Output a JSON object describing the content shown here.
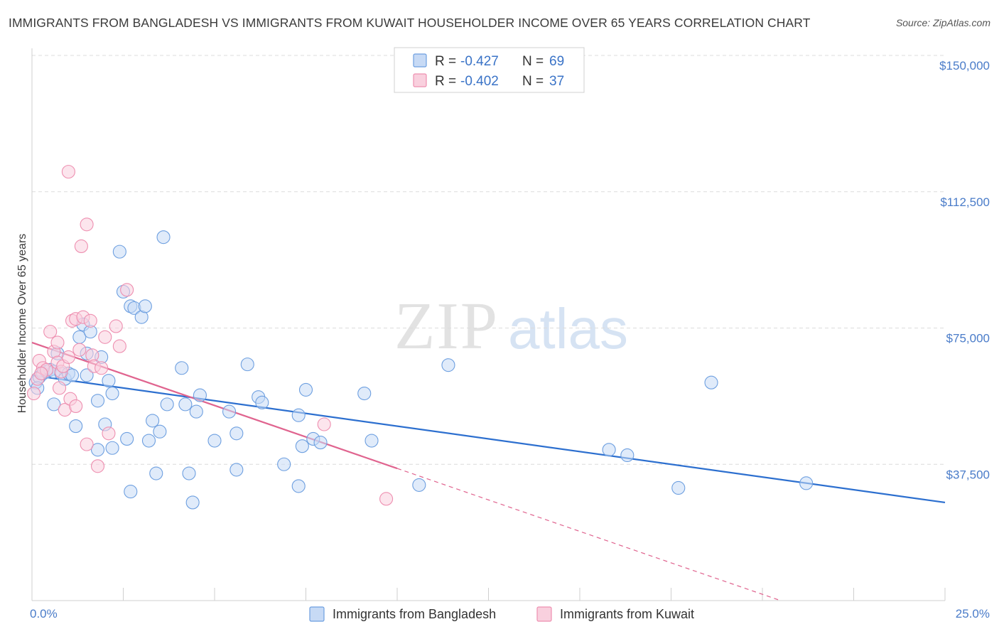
{
  "title": "IMMIGRANTS FROM BANGLADESH VS IMMIGRANTS FROM KUWAIT HOUSEHOLDER INCOME OVER 65 YEARS CORRELATION CHART",
  "source": "Source: ZipAtlas.com",
  "watermark": {
    "zip": "ZIP",
    "atlas": "atlas"
  },
  "colors": {
    "blue": "#6d9fe0",
    "blue_fill": "#c7daf5",
    "blue_line": "#2c6fcf",
    "pink": "#ee8fb0",
    "pink_fill": "#f9d0de",
    "pink_line": "#e0648f",
    "tick_text": "#4a7cc9",
    "grid": "#dcdcdc"
  },
  "legend_top": {
    "items": [
      {
        "r_label": "R = ",
        "r_value": "-0.427",
        "n_label": "N = ",
        "n_value": "69"
      },
      {
        "r_label": "R = ",
        "r_value": "-0.402",
        "n_label": "N = ",
        "n_value": "37"
      }
    ]
  },
  "chart_data": {
    "type": "scatter",
    "ylabel": "Householder Income Over 65 years",
    "xlim": [
      0,
      25
    ],
    "ylim": [
      0,
      150000
    ],
    "x_tick_labels": [
      "0.0%",
      "25.0%"
    ],
    "y_ticks": [
      {
        "value": 37500,
        "label": "$37,500"
      },
      {
        "value": 75000,
        "label": "$75,000"
      },
      {
        "value": 112500,
        "label": "$112,500"
      },
      {
        "value": 150000,
        "label": "$150,000"
      }
    ],
    "grid": "horizontal dashed",
    "legend_placement": "top-center and bottom",
    "series": [
      {
        "name": "Immigrants from Bangladesh",
        "color_key": "blue",
        "trend": {
          "x0": 0,
          "y0": 62000,
          "x1": 25,
          "y1": 27000,
          "dashed_after": null
        },
        "points": [
          [
            0.1,
            60000
          ],
          [
            0.2,
            61500
          ],
          [
            0.3,
            62500
          ],
          [
            0.4,
            63000
          ],
          [
            0.5,
            63500
          ],
          [
            0.6,
            63000
          ],
          [
            0.8,
            62500
          ],
          [
            0.9,
            61000
          ],
          [
            1.0,
            62500
          ],
          [
            1.1,
            62000
          ],
          [
            0.7,
            68000
          ],
          [
            0.6,
            54000
          ],
          [
            1.2,
            48000
          ],
          [
            1.3,
            72500
          ],
          [
            1.4,
            76000
          ],
          [
            1.5,
            68000
          ],
          [
            1.5,
            62000
          ],
          [
            1.6,
            74000
          ],
          [
            1.8,
            55000
          ],
          [
            1.8,
            41500
          ],
          [
            1.9,
            67000
          ],
          [
            2.0,
            48500
          ],
          [
            2.1,
            60500
          ],
          [
            2.2,
            42000
          ],
          [
            2.2,
            57000
          ],
          [
            2.4,
            96000
          ],
          [
            2.5,
            85000
          ],
          [
            2.6,
            44500
          ],
          [
            2.7,
            81000
          ],
          [
            2.7,
            30000
          ],
          [
            2.8,
            80500
          ],
          [
            3.0,
            78000
          ],
          [
            3.1,
            81000
          ],
          [
            3.2,
            44000
          ],
          [
            3.3,
            49500
          ],
          [
            3.4,
            35000
          ],
          [
            3.5,
            46500
          ],
          [
            3.6,
            100000
          ],
          [
            3.7,
            54000
          ],
          [
            4.1,
            64000
          ],
          [
            4.2,
            54000
          ],
          [
            4.3,
            35000
          ],
          [
            4.4,
            27000
          ],
          [
            4.5,
            52000
          ],
          [
            4.6,
            56500
          ],
          [
            5.0,
            44000
          ],
          [
            5.4,
            52000
          ],
          [
            5.6,
            46000
          ],
          [
            5.6,
            36000
          ],
          [
            5.9,
            65000
          ],
          [
            6.2,
            56000
          ],
          [
            6.3,
            54500
          ],
          [
            6.9,
            37500
          ],
          [
            7.3,
            51000
          ],
          [
            7.3,
            31500
          ],
          [
            7.4,
            42500
          ],
          [
            7.5,
            58000
          ],
          [
            7.7,
            44500
          ],
          [
            7.9,
            43500
          ],
          [
            9.1,
            57000
          ],
          [
            9.3,
            44000
          ],
          [
            10.6,
            31800
          ],
          [
            11.4,
            64800
          ],
          [
            15.8,
            41500
          ],
          [
            16.3,
            40000
          ],
          [
            17.7,
            31000
          ],
          [
            18.6,
            60000
          ],
          [
            21.2,
            32300
          ],
          [
            0.15,
            58500
          ]
        ]
      },
      {
        "name": "Immigrants from Kuwait",
        "color_key": "pink",
        "trend": {
          "x0": 0,
          "y0": 71000,
          "x1": 20.5,
          "y1": 0,
          "solid_until_x": 10.0
        },
        "points": [
          [
            0.05,
            57000
          ],
          [
            0.15,
            61000
          ],
          [
            0.2,
            66000
          ],
          [
            0.3,
            64000
          ],
          [
            0.4,
            63500
          ],
          [
            0.5,
            74000
          ],
          [
            0.6,
            68500
          ],
          [
            0.7,
            71000
          ],
          [
            0.7,
            65500
          ],
          [
            0.75,
            58500
          ],
          [
            0.8,
            63000
          ],
          [
            0.85,
            64500
          ],
          [
            0.9,
            52500
          ],
          [
            1.0,
            67000
          ],
          [
            1.05,
            55500
          ],
          [
            1.0,
            118000
          ],
          [
            1.1,
            77000
          ],
          [
            1.2,
            77500
          ],
          [
            1.2,
            53500
          ],
          [
            1.3,
            69000
          ],
          [
            1.35,
            97500
          ],
          [
            1.4,
            78000
          ],
          [
            1.5,
            103500
          ],
          [
            1.5,
            43000
          ],
          [
            1.6,
            77000
          ],
          [
            1.65,
            67500
          ],
          [
            1.7,
            64500
          ],
          [
            1.8,
            37000
          ],
          [
            1.9,
            64000
          ],
          [
            2.0,
            72500
          ],
          [
            2.1,
            46000
          ],
          [
            2.3,
            75500
          ],
          [
            2.4,
            70000
          ],
          [
            2.6,
            85500
          ],
          [
            8.0,
            48500
          ],
          [
            9.7,
            28000
          ],
          [
            0.25,
            62500
          ]
        ]
      }
    ]
  }
}
